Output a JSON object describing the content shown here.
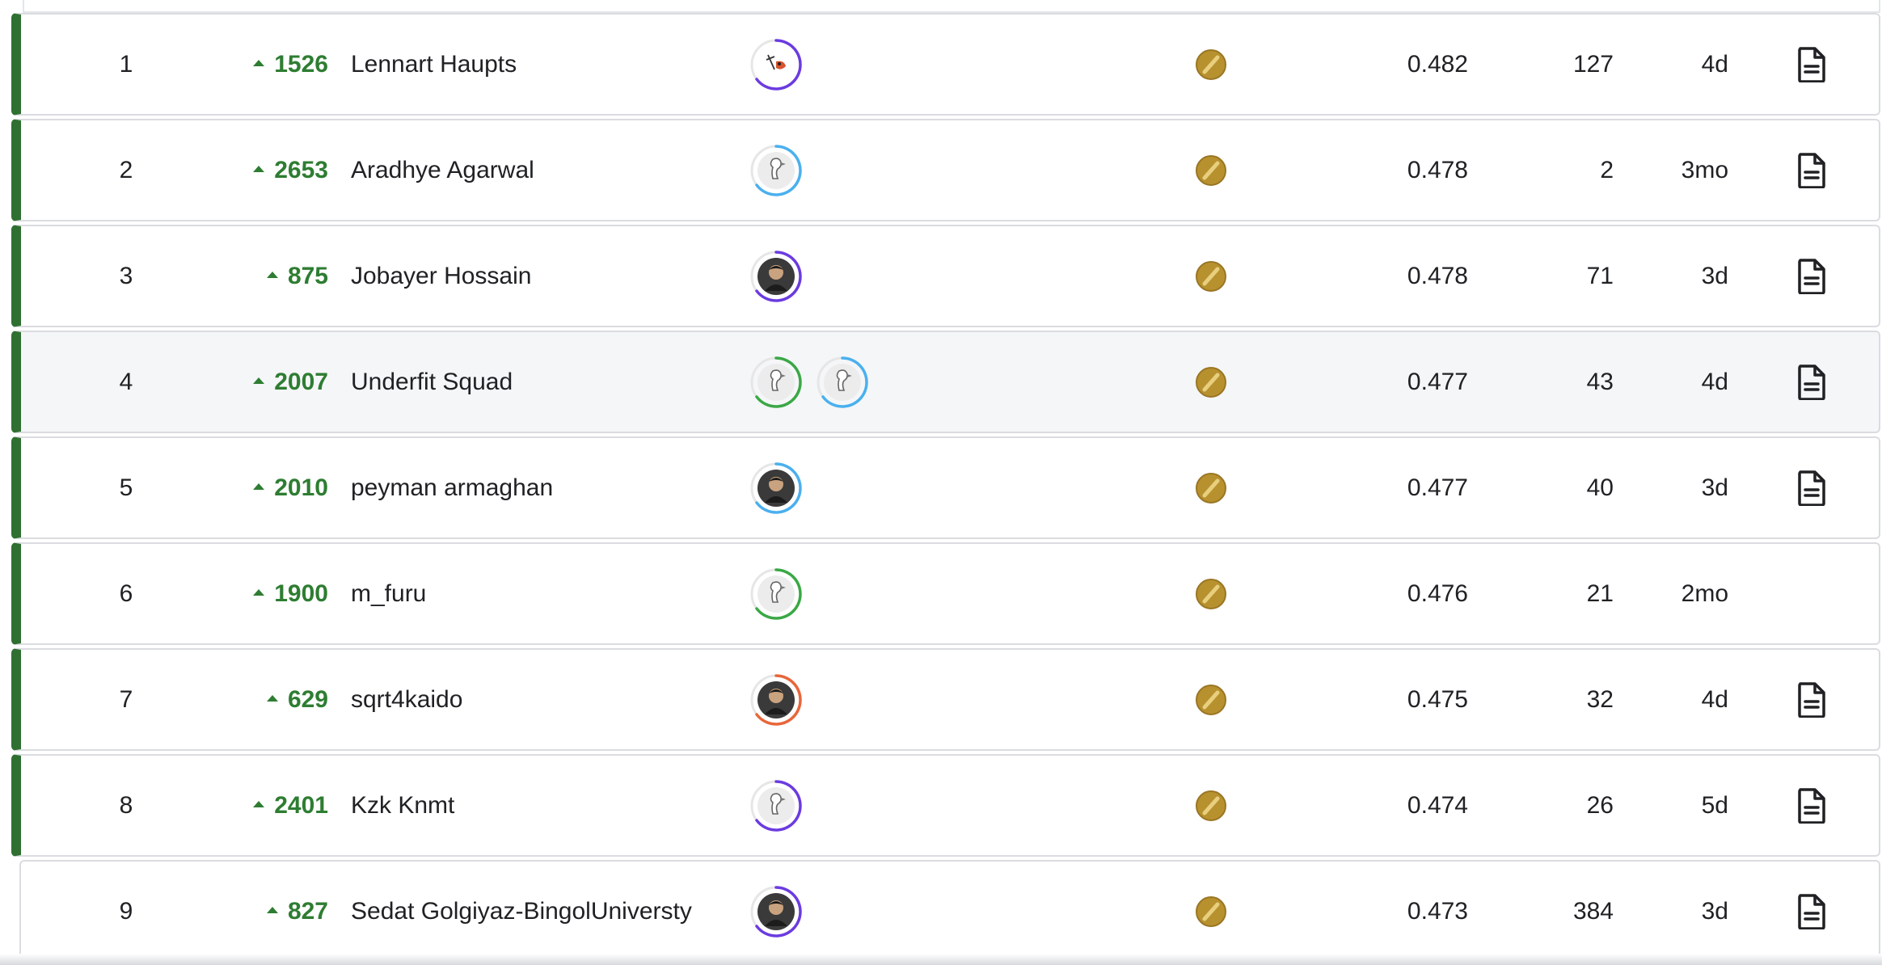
{
  "leaderboard": {
    "rows": [
      {
        "rank": "1",
        "delta": "1526",
        "team": "Lennart Haupts",
        "avatars": [
          {
            "ring": "#6b3be0",
            "kind": "custom"
          }
        ],
        "score": "0.482",
        "entries": "127",
        "last": "4d",
        "notebook": true,
        "medal": "gold-medal-icon"
      },
      {
        "rank": "2",
        "delta": "2653",
        "team": "Aradhye Agarwal",
        "avatars": [
          {
            "ring": "#4ab0ee",
            "kind": "goose"
          }
        ],
        "score": "0.478",
        "entries": "2",
        "last": "3mo",
        "notebook": true,
        "medal": "gold-medal-icon"
      },
      {
        "rank": "3",
        "delta": "875",
        "team": "Jobayer Hossain",
        "avatars": [
          {
            "ring": "#6b3be0",
            "kind": "photo"
          }
        ],
        "score": "0.478",
        "entries": "71",
        "last": "3d",
        "notebook": true,
        "medal": "gold-medal-icon"
      },
      {
        "rank": "4",
        "delta": "2007",
        "team": "Underfit Squad",
        "avatars": [
          {
            "ring": "#3aa845",
            "kind": "goose"
          },
          {
            "ring": "#4ab0ee",
            "kind": "goose"
          }
        ],
        "score": "0.477",
        "entries": "43",
        "last": "4d",
        "notebook": true,
        "medal": "gold-medal-icon"
      },
      {
        "rank": "5",
        "delta": "2010",
        "team": "peyman armaghan",
        "avatars": [
          {
            "ring": "#4ab0ee",
            "kind": "photo"
          }
        ],
        "score": "0.477",
        "entries": "40",
        "last": "3d",
        "notebook": true,
        "medal": "gold-medal-icon"
      },
      {
        "rank": "6",
        "delta": "1900",
        "team": "m_furu",
        "avatars": [
          {
            "ring": "#3aa845",
            "kind": "goose"
          }
        ],
        "score": "0.476",
        "entries": "21",
        "last": "2mo",
        "notebook": false,
        "medal": "gold-medal-icon"
      },
      {
        "rank": "7",
        "delta": "629",
        "team": "sqrt4kaido",
        "avatars": [
          {
            "ring": "#e8663a",
            "kind": "photo"
          }
        ],
        "score": "0.475",
        "entries": "32",
        "last": "4d",
        "notebook": true,
        "medal": "gold-medal-icon"
      },
      {
        "rank": "8",
        "delta": "2401",
        "team": "Kzk Knmt",
        "avatars": [
          {
            "ring": "#6b3be0",
            "kind": "goose"
          }
        ],
        "score": "0.474",
        "entries": "26",
        "last": "5d",
        "notebook": true,
        "medal": "gold-medal-icon"
      },
      {
        "rank": "9",
        "delta": "827",
        "team": "Sedat Golgiyaz-BingolUniversty",
        "avatars": [
          {
            "ring": "#6b3be0",
            "kind": "photo"
          }
        ],
        "score": "0.473",
        "entries": "384",
        "last": "3d",
        "notebook": true,
        "medal": "gold-medal-icon"
      }
    ]
  },
  "colors": {
    "medal_border": "#2f6f31",
    "delta_green": "#2e7d32",
    "gold": "#b8912f"
  }
}
